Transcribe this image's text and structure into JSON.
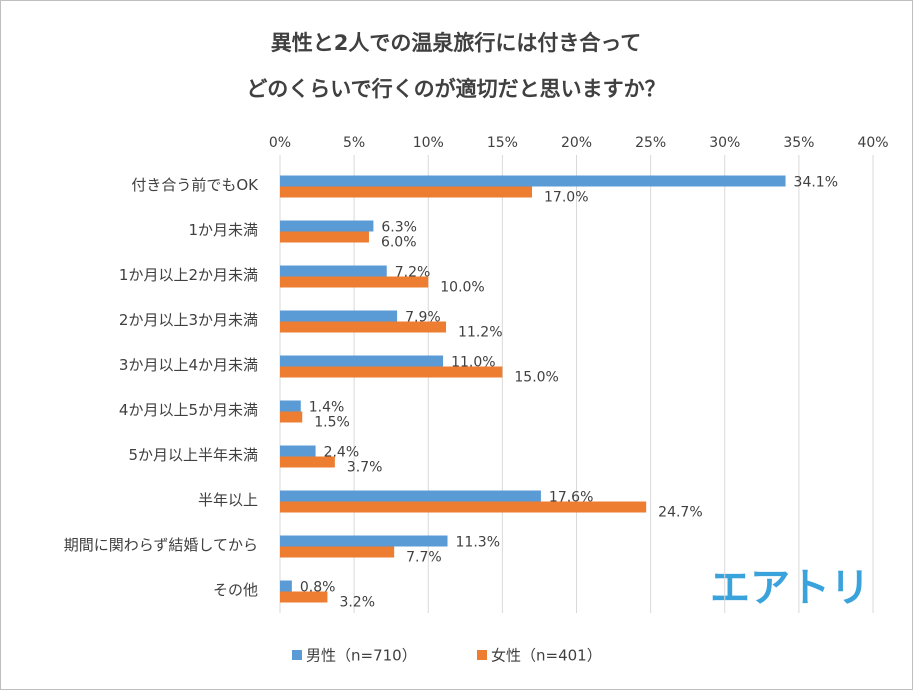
{
  "chart_data": {
    "type": "bar",
    "orientation": "horizontal",
    "title": [
      "異性と2人での温泉旅行には付き合って",
      "どのくらいで行くのが適切だと思いますか？"
    ],
    "categories": [
      "付き合う前でもOK",
      "1か月未満",
      "1か月以上2か月未満",
      "2か月以上3か月未満",
      "3か月以上4か月未満",
      "4か月以上5か月未満",
      "5か月以上半年未満",
      "半年以上",
      "期間に関わらず結婚してから",
      "その他"
    ],
    "series": [
      {
        "name": "男性（n=710）",
        "color": "#5b9bd5",
        "values": [
          34.1,
          6.3,
          7.2,
          7.9,
          11.0,
          1.4,
          2.4,
          17.6,
          11.3,
          0.8
        ],
        "value_labels": [
          "34.1%",
          "6.3%",
          "7.2%",
          "7.9%",
          "11.0%",
          "1.4%",
          "2.4%",
          "17.6%",
          "11.3%",
          "0.8%"
        ]
      },
      {
        "name": "女性（n=401）",
        "color": "#ed7d31",
        "values": [
          17.0,
          6.0,
          10.0,
          11.2,
          15.0,
          1.5,
          3.7,
          24.7,
          7.7,
          3.2
        ],
        "value_labels": [
          "17.0%",
          "6.0%",
          "10.0%",
          "11.2%",
          "15.0%",
          "1.5%",
          "3.7%",
          "24.7%",
          "7.7%",
          "3.2%"
        ]
      }
    ],
    "xlim": [
      0,
      40
    ],
    "xticks": [
      {
        "value": 0,
        "label": "0%"
      },
      {
        "value": 5,
        "label": "5%"
      },
      {
        "value": 10,
        "label": "10%"
      },
      {
        "value": 15,
        "label": "15%"
      },
      {
        "value": 20,
        "label": "20%"
      },
      {
        "value": 25,
        "label": "25%"
      },
      {
        "value": 30,
        "label": "30%"
      },
      {
        "value": 35,
        "label": "35%"
      },
      {
        "value": 40,
        "label": "40%"
      }
    ],
    "grid": true,
    "legend": "bottom",
    "watermark": "エアトリ"
  }
}
